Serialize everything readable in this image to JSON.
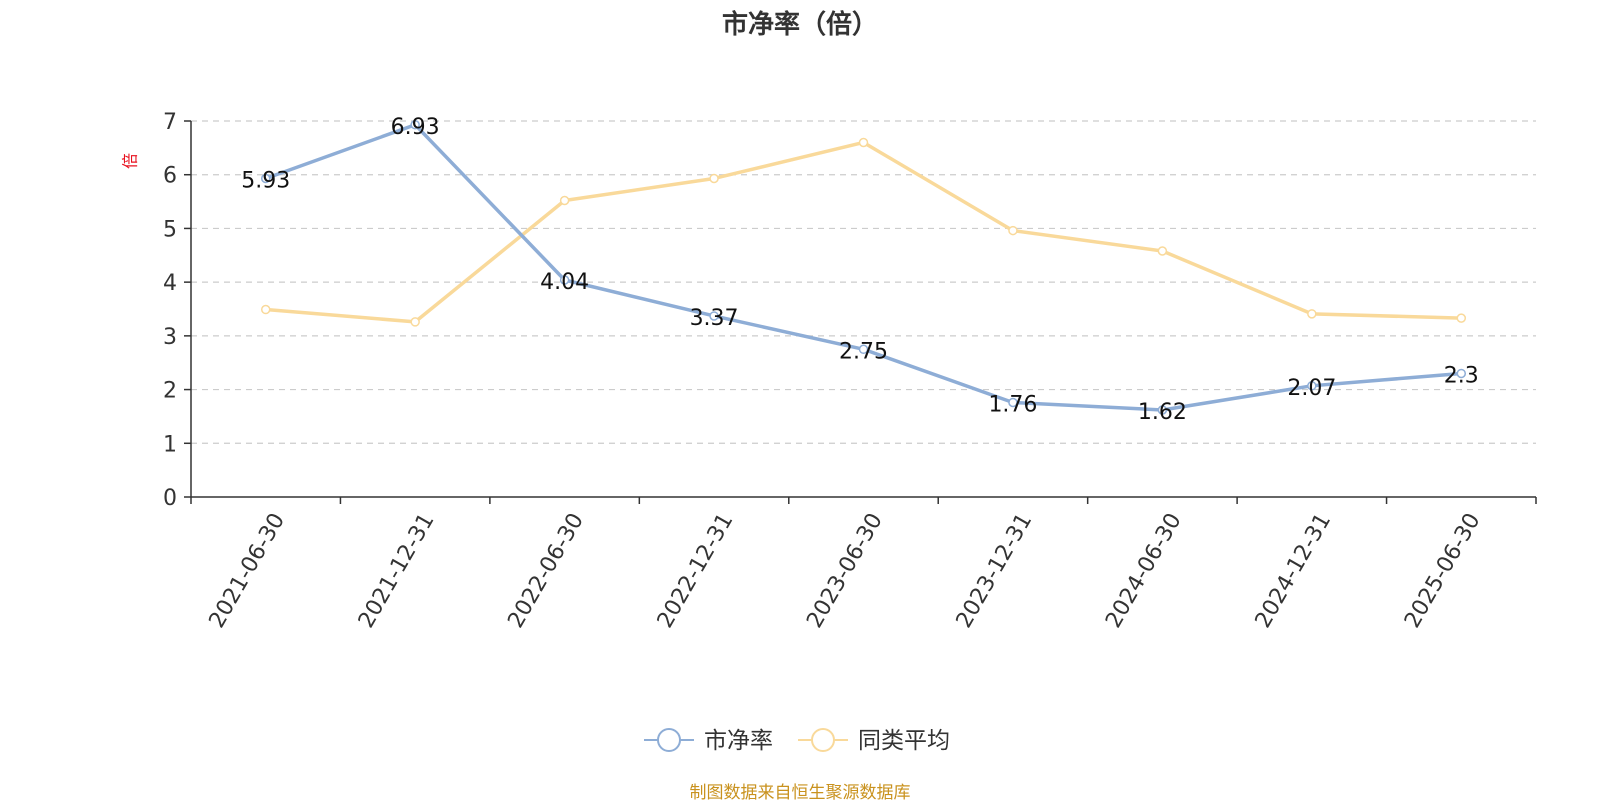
{
  "chart_data": {
    "type": "line",
    "title": "市净率（倍）",
    "ylabel": "倍",
    "xlabel": "",
    "categories": [
      "2021-06-30",
      "2021-12-31",
      "2022-06-30",
      "2022-12-31",
      "2023-06-30",
      "2023-12-31",
      "2024-06-30",
      "2024-12-31",
      "2025-06-30"
    ],
    "ylim": [
      0,
      7
    ],
    "yticks": [
      "0",
      "1",
      "2",
      "3",
      "4",
      "5",
      "6",
      "7"
    ],
    "grid": true,
    "legend_position": "bottom-center",
    "series": [
      {
        "name": "市净率",
        "color": "#8eadd6",
        "values": [
          5.93,
          6.93,
          4.04,
          3.37,
          2.75,
          1.76,
          1.62,
          2.07,
          2.3
        ],
        "labels": [
          "5.93",
          "6.93",
          "4.04",
          "3.37",
          "2.75",
          "1.76",
          "1.62",
          "2.07",
          "2.3"
        ]
      },
      {
        "name": "同类平均",
        "color": "#f9d99a",
        "values": [
          3.49,
          3.26,
          5.52,
          5.93,
          6.6,
          4.96,
          4.58,
          3.41,
          3.33
        ]
      }
    ]
  },
  "source_note": "制图数据来自恒生聚源数据库",
  "colors": {
    "title": "#333333",
    "axis": "#333333",
    "grid": "#cccccc",
    "ylabel": "#e8101e",
    "source": "#c9921e"
  }
}
